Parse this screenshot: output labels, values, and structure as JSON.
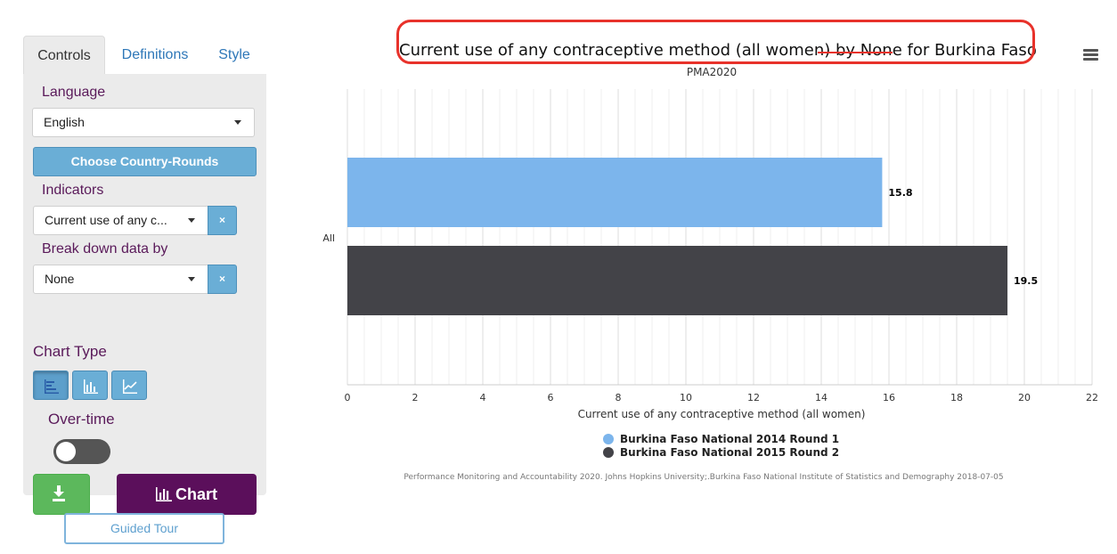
{
  "tabs": [
    "Controls",
    "Definitions",
    "Style"
  ],
  "controls": {
    "language_label": "Language",
    "language_value": "English",
    "choose_country_rounds": "Choose Country-Rounds",
    "indicators_label": "Indicators",
    "indicators_value": "Current use of any c...",
    "breakdown_label": "Break down data by",
    "breakdown_value": "None",
    "clear_symbol": "×",
    "chart_type_label": "Chart Type",
    "chart_types": [
      "bar-horizontal-icon",
      "bar-vertical-icon",
      "line-chart-icon"
    ],
    "over_time_label": "Over-time",
    "over_time_on": false,
    "download_icon": "download-icon",
    "chart_button_label": "Chart",
    "guided_tour_label": "Guided Tour"
  },
  "chart": {
    "title": "Current use of any contraceptive method (all women) by None for Burkina Faso",
    "subtitle": "PMA2020",
    "source_note": "Performance Monitoring and Accountability 2020. Johns Hopkins University;.Burkina Faso National Institute of Statistics and Demography 2018-07-05",
    "menu_icon": "hamburger-menu-icon"
  },
  "annotation_color": "#e8322b",
  "colors": {
    "series1": "#7cb5ec",
    "series2": "#434348",
    "chart_button": "#5b0f5b",
    "download_button": "#5cb85c",
    "primary": "#6aaed6"
  },
  "chart_data": {
    "type": "bar",
    "orientation": "horizontal",
    "categories": [
      "All"
    ],
    "series": [
      {
        "name": "Burkina Faso National 2014 Round 1",
        "values": [
          15.8
        ]
      },
      {
        "name": "Burkina Faso National 2015 Round 2",
        "values": [
          19.5
        ]
      }
    ],
    "xlabel": "Current use of any contraceptive method (all women)",
    "xlim": [
      0,
      22
    ],
    "xticks": [
      0,
      2,
      4,
      6,
      8,
      10,
      12,
      14,
      16,
      18,
      20,
      22
    ],
    "grid": true,
    "legend_position": "bottom-center"
  }
}
